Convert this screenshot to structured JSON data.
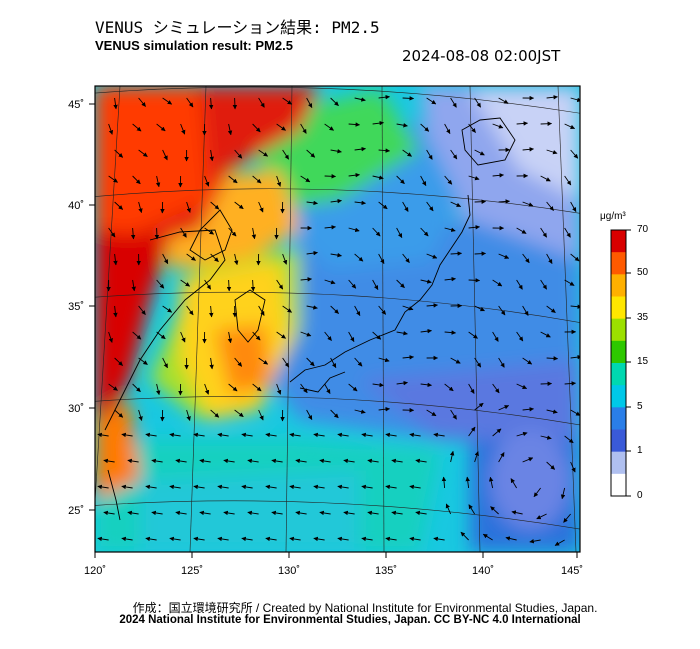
{
  "header": {
    "title_jp": "VENUS シミュレーション結果: PM2.5",
    "title_en": "VENUS simulation result: PM2.5",
    "datetime": "2024-08-08 02:00JST"
  },
  "map": {
    "lon_ticks": [
      "120˚",
      "125˚",
      "130˚",
      "135˚",
      "140˚",
      "145˚"
    ],
    "lat_ticks": [
      "45˚",
      "40˚",
      "35˚",
      "30˚",
      "25˚"
    ]
  },
  "colorbar": {
    "unit": "μg/m³",
    "labels": [
      "70",
      "50",
      "35",
      "15",
      "5",
      "1",
      "0"
    ],
    "colors": [
      "#d80000",
      "#ff5a00",
      "#ffb000",
      "#ffe600",
      "#9ce000",
      "#2dc800",
      "#00d8b0",
      "#00c8e8",
      "#2a7ee8",
      "#3a5ad8",
      "#b0c0f0",
      "#ffffff"
    ]
  },
  "footer": {
    "credit_line1": "作成：国立環境研究所 / Created by National Institute for Environmental Studies, Japan.",
    "credit_line2": "2024 National Institute for Environmental Studies, Japan. CC BY-NC 4.0 International"
  }
}
